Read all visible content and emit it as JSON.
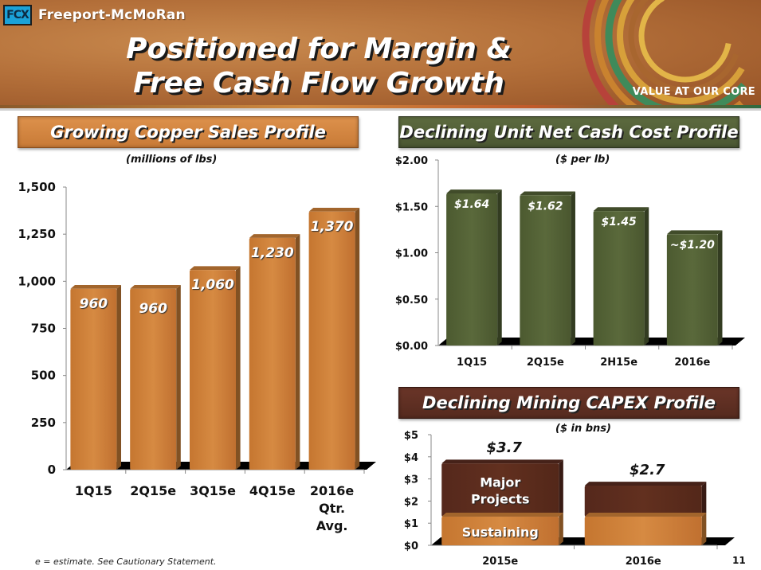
{
  "header": {
    "company": "Freeport-McMoRan",
    "logo_mark": "FCX",
    "title_line1": "Positioned for Margin &",
    "title_line2": "Free Cash Flow Growth",
    "tagline": "VALUE AT OUR CORE"
  },
  "colors": {
    "copper": "#d08238",
    "olive": "#536136",
    "brown": "#5a2c20",
    "accent_blue": "#1ba2d8"
  },
  "panels": {
    "copper_sales": {
      "title": "Growing Copper Sales Profile",
      "subtitle": "(millions of lbs)"
    },
    "unit_cost": {
      "title": "Declining Unit Net Cash Cost Profile",
      "subtitle": "($ per lb)"
    },
    "capex": {
      "title": "Declining Mining CAPEX Profile",
      "subtitle": "($ in bns)"
    }
  },
  "chart_data": [
    {
      "id": "copper_sales",
      "type": "bar",
      "title": "Growing Copper Sales Profile",
      "ylabel": "millions of lbs",
      "categories": [
        "1Q15",
        "2Q15e",
        "3Q15e",
        "4Q15e",
        "2016e Qtr. Avg."
      ],
      "category_lines": [
        [
          "1Q15"
        ],
        [
          "2Q15e"
        ],
        [
          "3Q15e"
        ],
        [
          "4Q15e"
        ],
        [
          "2016e",
          "Qtr.",
          "Avg."
        ]
      ],
      "values": [
        960,
        960,
        1060,
        1230,
        1370
      ],
      "data_labels": [
        "960",
        "960",
        "1,060",
        "1,230",
        "1,370"
      ],
      "ylim": [
        0,
        1500
      ],
      "yticks": [
        0,
        250,
        500,
        750,
        1000,
        1250,
        1500
      ],
      "ytick_labels": [
        "0",
        "250",
        "500",
        "750",
        "1,000",
        "1,250",
        "1,500"
      ],
      "grid": false
    },
    {
      "id": "unit_cost",
      "type": "bar",
      "title": "Declining Unit Net Cash Cost Profile",
      "ylabel": "$ per lb",
      "categories": [
        "1Q15",
        "2Q15e",
        "2H15e",
        "2016e"
      ],
      "values": [
        1.64,
        1.62,
        1.45,
        1.2
      ],
      "data_labels": [
        "$1.64",
        "$1.62",
        "$1.45",
        "~$1.20"
      ],
      "ylim": [
        0,
        2.0
      ],
      "yticks": [
        0,
        0.5,
        1.0,
        1.5,
        2.0
      ],
      "ytick_labels": [
        "$0.00",
        "$0.50",
        "$1.00",
        "$1.50",
        "$2.00"
      ],
      "grid": false
    },
    {
      "id": "capex",
      "type": "bar",
      "stacked": true,
      "title": "Declining Mining CAPEX Profile",
      "ylabel": "$ in bns",
      "categories": [
        "2015e",
        "2016e"
      ],
      "series": [
        {
          "name": "Sustaining",
          "values": [
            1.3,
            1.3
          ]
        },
        {
          "name": "Major Projects",
          "values": [
            2.4,
            1.4
          ]
        }
      ],
      "series_labels": [
        "Sustaining",
        "Major Projects"
      ],
      "totals": [
        3.7,
        2.7
      ],
      "total_labels": [
        "$3.7",
        "$2.7"
      ],
      "ylim": [
        0,
        5
      ],
      "yticks": [
        0,
        1,
        2,
        3,
        4,
        5
      ],
      "ytick_labels": [
        "$0",
        "$1",
        "$2",
        "$3",
        "$4",
        "$5"
      ],
      "grid": false
    }
  ],
  "footer": {
    "footnote": "e = estimate. See Cautionary Statement.",
    "page_number": "11"
  }
}
